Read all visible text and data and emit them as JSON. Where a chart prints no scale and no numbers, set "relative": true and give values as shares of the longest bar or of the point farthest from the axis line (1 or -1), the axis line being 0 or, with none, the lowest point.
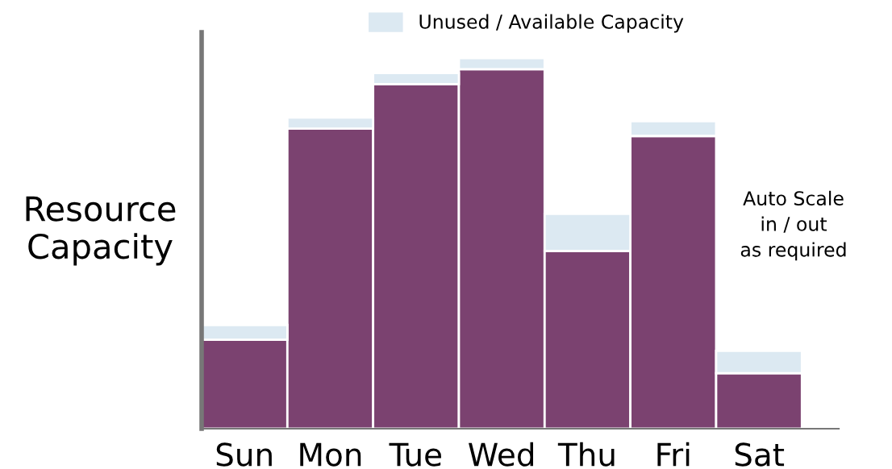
{
  "chart_data": {
    "type": "bar",
    "stacked": true,
    "relative": true,
    "ylabel": "Resource\nCapacity",
    "categories": [
      "Sun",
      "Mon",
      "Tue",
      "Wed",
      "Thu",
      "Fri",
      "Sat"
    ],
    "series": [
      {
        "color": "#7b4270",
        "values": [
          0.24,
          0.81,
          0.93,
          0.97,
          0.48,
          0.79,
          0.15
        ]
      },
      {
        "name": "Unused / Available Capacity",
        "color": "#dce9f2",
        "values": [
          0.04,
          0.03,
          0.03,
          0.03,
          0.1,
          0.04,
          0.06
        ]
      }
    ],
    "annotations": [
      "Auto Scale\nin / out\nas required"
    ],
    "legend": "top",
    "grid": false
  }
}
